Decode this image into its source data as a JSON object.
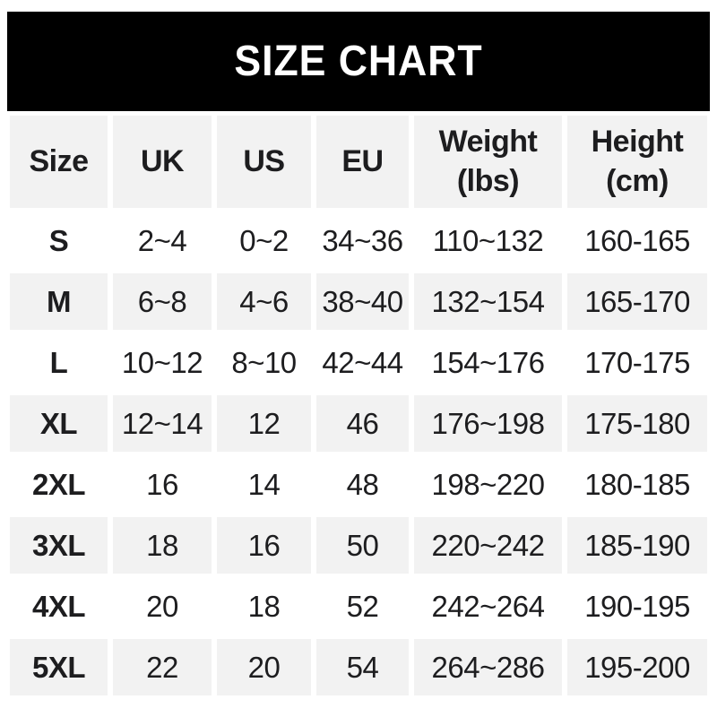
{
  "title": "SIZE CHART",
  "chart_data": {
    "type": "table",
    "title": "SIZE CHART",
    "columns": [
      "Size",
      "UK",
      "US",
      "EU",
      "Weight (lbs)",
      "Height (cm)"
    ],
    "rows": [
      [
        "S",
        "2~4",
        "0~2",
        "34~36",
        "110~132",
        "160-165"
      ],
      [
        "M",
        "6~8",
        "4~6",
        "38~40",
        "132~154",
        "165-170"
      ],
      [
        "L",
        "10~12",
        "8~10",
        "42~44",
        "154~176",
        "170-175"
      ],
      [
        "XL",
        "12~14",
        "12",
        "46",
        "176~198",
        "175-180"
      ],
      [
        "2XL",
        "16",
        "14",
        "48",
        "198~220",
        "180-185"
      ],
      [
        "3XL",
        "18",
        "16",
        "50",
        "220~242",
        "185-190"
      ],
      [
        "4XL",
        "20",
        "18",
        "52",
        "242~264",
        "190-195"
      ],
      [
        "5XL",
        "22",
        "20",
        "54",
        "264~286",
        "195-200"
      ]
    ],
    "layout_hints": {
      "row_striping": "alternating, header and even data rows shaded",
      "range_separator_body": "~",
      "range_separator_height": "-"
    }
  },
  "colors": {
    "banner_bg": "#000000",
    "banner_text": "#ffffff",
    "shaded_cell_bg": "#f2f2f2",
    "plain_cell_bg": "#ffffff",
    "text": "#1d1d1f"
  }
}
